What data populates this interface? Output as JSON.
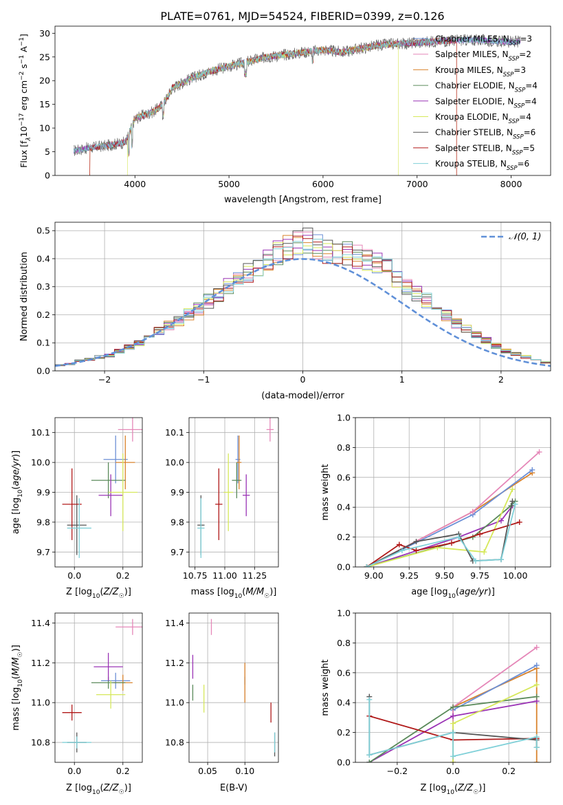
{
  "title": "PLATE=0761, MJD=54524, FIBERID=0399, z=0.126",
  "colors": {
    "Chabrier MILES": "#6b8fd6",
    "Salpeter MILES": "#e587b8",
    "Kroupa MILES": "#d9822b",
    "Chabrier ELODIE": "#5a8a5a",
    "Salpeter ELODIE": "#9a33b5",
    "Kroupa ELODIE": "#d6e85a",
    "Chabrier STELIB": "#555555",
    "Salpeter STELIB": "#b01818",
    "Kroupa STELIB": "#7fd0d8"
  },
  "chart_data": [
    {
      "id": "spectrum",
      "type": "line",
      "xlabel": "wavelength [Angstrom, rest frame]",
      "ylabel": "Flux [f_λ10^-17 erg cm^-2 s^-1 A^-1]",
      "xlim": [
        3150,
        8420
      ],
      "ylim": [
        0,
        31.5
      ],
      "xticks": [
        4000,
        5000,
        6000,
        7000,
        8000
      ],
      "yticks": [
        0,
        5,
        10,
        15,
        20,
        25,
        30
      ],
      "grid": false,
      "legend_position": "top-right",
      "legend": [
        {
          "name": "Chabrier MILES",
          "nssp": "3"
        },
        {
          "name": "Salpeter MILES",
          "nssp": "2"
        },
        {
          "name": "Kroupa MILES",
          "nssp": "3"
        },
        {
          "name": "Chabrier ELODIE",
          "nssp": "4"
        },
        {
          "name": "Salpeter ELODIE",
          "nssp": "4"
        },
        {
          "name": "Kroupa ELODIE",
          "nssp": "4"
        },
        {
          "name": "Chabrier STELIB",
          "nssp": "6"
        },
        {
          "name": "Salpeter STELIB",
          "nssp": "5"
        },
        {
          "name": "Kroupa STELIB",
          "nssp": "6"
        }
      ],
      "data_series": {
        "x": [
          3350,
          3500,
          3700,
          3900,
          4000,
          4200,
          4300,
          4400,
          4600,
          4800,
          5000,
          5200,
          5400,
          5600,
          5800,
          6000,
          6200,
          6400,
          6600,
          6800,
          7000,
          7200,
          7400,
          7600,
          7800,
          8000
        ],
        "y": [
          5.2,
          5.8,
          6.3,
          7.0,
          12.0,
          13.5,
          15.0,
          18.5,
          20.5,
          22.0,
          23.0,
          24.0,
          25.0,
          25.5,
          26.0,
          26.5,
          26.0,
          26.8,
          27.5,
          27.8,
          28.0,
          28.3,
          28.5,
          28.6,
          28.4,
          28.2
        ]
      },
      "model_cutoffs": {
        "Kroupa MILES": [
          3520,
          7420
        ],
        "Kroupa ELODIE": [
          3920,
          6800
        ],
        "Salpeter STELIB": [
          3520,
          7420
        ]
      }
    },
    {
      "id": "residuals",
      "type": "histogram",
      "xlabel": "(data-model)/error",
      "ylabel": "Normed distribution",
      "xlim": [
        -2.5,
        2.5
      ],
      "ylim": [
        0,
        0.53
      ],
      "xticks": [
        -2,
        -1,
        0,
        1,
        2
      ],
      "xtick_labels": [
        "−2",
        "−1",
        "0",
        "1",
        "2"
      ],
      "yticks": [
        0.0,
        0.1,
        0.2,
        0.3,
        0.4,
        0.5
      ],
      "grid": true,
      "legend_position": "top-right",
      "legend": [
        "𝒩(0, 1)"
      ],
      "bin_edges_start": -2.5,
      "bin_width": 0.1,
      "base_values": [
        0.02,
        0.025,
        0.035,
        0.04,
        0.05,
        0.055,
        0.07,
        0.085,
        0.1,
        0.12,
        0.14,
        0.16,
        0.18,
        0.2,
        0.22,
        0.25,
        0.27,
        0.3,
        0.32,
        0.35,
        0.37,
        0.4,
        0.42,
        0.44,
        0.45,
        0.46,
        0.44,
        0.43,
        0.42,
        0.42,
        0.41,
        0.4,
        0.38,
        0.36,
        0.33,
        0.3,
        0.28,
        0.25,
        0.22,
        0.2,
        0.17,
        0.15,
        0.13,
        0.11,
        0.09,
        0.07,
        0.06,
        0.05,
        0.04,
        0.03
      ]
    },
    {
      "id": "age-vs-Z",
      "type": "scatter",
      "xlabel": "Z [log10(Z/Z☉)]",
      "ylabel": "age [log10(age/yr)]",
      "xlim": [
        -0.08,
        0.28
      ],
      "ylim": [
        9.65,
        10.15
      ],
      "xticks": [
        0.0,
        0.2
      ],
      "yticks": [
        9.7,
        9.8,
        9.9,
        10.0,
        10.1
      ],
      "grid": true,
      "points": [
        {
          "model": "Chabrier MILES",
          "x": 0.17,
          "y": 10.01,
          "xerr": 0.05,
          "yerr": 0.08
        },
        {
          "model": "Salpeter MILES",
          "x": 0.24,
          "y": 10.11,
          "xerr": 0.06,
          "yerr": 0.04
        },
        {
          "model": "Kroupa MILES",
          "x": 0.21,
          "y": 10.0,
          "xerr": 0.04,
          "yerr": 0.09
        },
        {
          "model": "Chabrier ELODIE",
          "x": 0.14,
          "y": 9.94,
          "xerr": 0.07,
          "yerr": 0.06
        },
        {
          "model": "Salpeter ELODIE",
          "x": 0.15,
          "y": 9.89,
          "xerr": 0.05,
          "yerr": 0.07
        },
        {
          "model": "Kroupa ELODIE",
          "x": 0.2,
          "y": 9.9,
          "xerr": 0.06,
          "yerr": 0.13
        },
        {
          "model": "Chabrier STELIB",
          "x": 0.01,
          "y": 9.79,
          "xerr": 0.04,
          "yerr": 0.1
        },
        {
          "model": "Salpeter STELIB",
          "x": -0.01,
          "y": 9.86,
          "xerr": 0.04,
          "yerr": 0.12
        },
        {
          "model": "Kroupa STELIB",
          "x": 0.02,
          "y": 9.78,
          "xerr": 0.05,
          "yerr": 0.1
        }
      ]
    },
    {
      "id": "age-vs-mass",
      "type": "scatter",
      "xlabel": "mass [log10(M/M☉)]",
      "ylabel": "",
      "xlim": [
        10.7,
        11.45
      ],
      "ylim": [
        9.65,
        10.15
      ],
      "xticks": [
        10.75,
        11.0,
        11.25
      ],
      "yticks": [
        9.7,
        9.8,
        9.9,
        10.0,
        10.1
      ],
      "grid": true,
      "points": [
        {
          "model": "Chabrier MILES",
          "x": 11.11,
          "y": 10.01,
          "xerr": 0.02,
          "yerr": 0.08
        },
        {
          "model": "Salpeter MILES",
          "x": 11.38,
          "y": 10.11,
          "xerr": 0.03,
          "yerr": 0.04
        },
        {
          "model": "Kroupa MILES",
          "x": 11.12,
          "y": 10.0,
          "xerr": 0.02,
          "yerr": 0.09
        },
        {
          "model": "Chabrier ELODIE",
          "x": 11.1,
          "y": 9.94,
          "xerr": 0.04,
          "yerr": 0.06
        },
        {
          "model": "Salpeter ELODIE",
          "x": 11.18,
          "y": 9.89,
          "xerr": 0.03,
          "yerr": 0.07
        },
        {
          "model": "Kroupa ELODIE",
          "x": 11.03,
          "y": 9.9,
          "xerr": 0.04,
          "yerr": 0.13
        },
        {
          "model": "Chabrier STELIB",
          "x": 10.8,
          "y": 9.79,
          "xerr": 0.03,
          "yerr": 0.1
        },
        {
          "model": "Salpeter STELIB",
          "x": 10.95,
          "y": 9.86,
          "xerr": 0.03,
          "yerr": 0.12
        },
        {
          "model": "Kroupa STELIB",
          "x": 10.8,
          "y": 9.78,
          "xerr": 0.03,
          "yerr": 0.1
        }
      ]
    },
    {
      "id": "cumulative-age",
      "type": "line",
      "xlabel": "age [log10(age/yr)]",
      "ylabel": "mass weight",
      "xlim": [
        8.87,
        10.25
      ],
      "ylim": [
        0,
        1.0
      ],
      "xticks": [
        9.0,
        9.25,
        9.5,
        9.75,
        10.0
      ],
      "xtick_labels": [
        "9.00",
        "9.25",
        "9.50",
        "9.75",
        "10.00"
      ],
      "yticks": [
        0.0,
        0.2,
        0.4,
        0.6,
        0.8,
        1.0
      ],
      "grid": true,
      "series": [
        {
          "model": "Kroupa MILES",
          "x": [
            8.95,
            9.7,
            10.12
          ],
          "y": [
            0.0,
            0.37,
            0.63
          ]
        },
        {
          "model": "Chabrier MILES",
          "x": [
            8.95,
            9.7,
            10.12
          ],
          "y": [
            0.0,
            0.35,
            0.65
          ]
        },
        {
          "model": "Salpeter MILES",
          "x": [
            8.95,
            9.7,
            10.17
          ],
          "y": [
            0.0,
            0.37,
            0.77
          ]
        },
        {
          "model": "Salpeter ELODIE",
          "x": [
            8.95,
            9.6,
            9.9,
            9.98
          ],
          "y": [
            0.0,
            0.2,
            0.31,
            0.41
          ]
        },
        {
          "model": "Chabrier ELODIE",
          "x": [
            8.95,
            9.7,
            9.97,
            10.0
          ],
          "y": [
            0.0,
            0.2,
            0.41,
            0.44
          ]
        },
        {
          "model": "Kroupa ELODIE",
          "x": [
            8.95,
            9.45,
            9.78,
            9.98
          ],
          "y": [
            0.0,
            0.13,
            0.1,
            0.52
          ]
        },
        {
          "model": "Salpeter STELIB",
          "x": [
            8.95,
            9.18,
            9.3,
            9.55,
            9.75,
            10.03
          ],
          "y": [
            0.0,
            0.15,
            0.11,
            0.16,
            0.22,
            0.3
          ]
        },
        {
          "model": "Chabrier STELIB",
          "x": [
            8.95,
            9.3,
            9.6,
            9.7,
            9.9,
            9.98
          ],
          "y": [
            0.0,
            0.17,
            0.22,
            0.04,
            0.05,
            0.44
          ]
        },
        {
          "model": "Kroupa STELIB",
          "x": [
            8.95,
            9.2,
            9.6,
            9.72,
            9.9,
            10.0
          ],
          "y": [
            0.0,
            0.11,
            0.2,
            0.04,
            0.05,
            0.42
          ]
        }
      ]
    },
    {
      "id": "mass-vs-Z",
      "type": "scatter",
      "xlabel": "Z [log10(Z/Z☉)]",
      "ylabel": "mass [log10(M/M☉)]",
      "xlim": [
        -0.08,
        0.28
      ],
      "ylim": [
        10.7,
        11.45
      ],
      "xticks": [
        0.0,
        0.2
      ],
      "yticks": [
        10.8,
        11.0,
        11.2,
        11.4
      ],
      "grid": true,
      "points": [
        {
          "model": "Chabrier MILES",
          "x": 0.17,
          "y": 11.11,
          "xerr": 0.06,
          "yerr": 0.04
        },
        {
          "model": "Salpeter MILES",
          "x": 0.24,
          "y": 11.38,
          "xerr": 0.07,
          "yerr": 0.04
        },
        {
          "model": "Kroupa MILES",
          "x": 0.2,
          "y": 11.1,
          "xerr": 0.04,
          "yerr": 0.04
        },
        {
          "model": "Chabrier ELODIE",
          "x": 0.14,
          "y": 11.1,
          "xerr": 0.07,
          "yerr": 0.03
        },
        {
          "model": "Salpeter ELODIE",
          "x": 0.14,
          "y": 11.18,
          "xerr": 0.06,
          "yerr": 0.07
        },
        {
          "model": "Kroupa ELODIE",
          "x": 0.15,
          "y": 11.04,
          "xerr": 0.06,
          "yerr": 0.07
        },
        {
          "model": "Chabrier STELIB",
          "x": 0.01,
          "y": 10.8,
          "xerr": 0.04,
          "yerr": 0.05
        },
        {
          "model": "Salpeter STELIB",
          "x": -0.01,
          "y": 10.95,
          "xerr": 0.04,
          "yerr": 0.04
        },
        {
          "model": "Kroupa STELIB",
          "x": 0.01,
          "y": 10.8,
          "xerr": 0.06,
          "yerr": 0.03
        }
      ]
    },
    {
      "id": "mass-vs-ebv",
      "type": "scatter",
      "xlabel": "E(B-V)",
      "ylabel": "",
      "xlim": [
        0.025,
        0.145
      ],
      "ylim": [
        10.7,
        11.45
      ],
      "xticks": [
        0.05,
        0.1
      ],
      "xtick_labels": [
        "0.05",
        "0.10"
      ],
      "yticks": [
        10.8,
        11.0,
        11.2,
        11.4
      ],
      "grid": true,
      "points": [
        {
          "model": "Chabrier MILES",
          "x": 0.1,
          "y": 11.11,
          "xerr": 0.0,
          "yerr": 0.02
        },
        {
          "model": "Salpeter MILES",
          "x": 0.055,
          "y": 11.38,
          "xerr": 0.0,
          "yerr": 0.04
        },
        {
          "model": "Kroupa MILES",
          "x": 0.1,
          "y": 11.1,
          "xerr": 0.0,
          "yerr": 0.1
        },
        {
          "model": "Chabrier ELODIE",
          "x": 0.03,
          "y": 11.05,
          "xerr": 0.0,
          "yerr": 0.04
        },
        {
          "model": "Salpeter ELODIE",
          "x": 0.03,
          "y": 11.18,
          "xerr": 0.0,
          "yerr": 0.06
        },
        {
          "model": "Kroupa ELODIE",
          "x": 0.045,
          "y": 11.02,
          "xerr": 0.0,
          "yerr": 0.07
        },
        {
          "model": "Chabrier STELIB",
          "x": 0.14,
          "y": 10.79,
          "xerr": 0.0,
          "yerr": 0.06
        },
        {
          "model": "Salpeter STELIB",
          "x": 0.135,
          "y": 10.95,
          "xerr": 0.0,
          "yerr": 0.05
        },
        {
          "model": "Kroupa STELIB",
          "x": 0.14,
          "y": 10.8,
          "xerr": 0.0,
          "yerr": 0.05
        }
      ]
    },
    {
      "id": "cumulative-Z",
      "type": "line",
      "xlabel": "Z [log10(Z/Z☉)]",
      "ylabel": "mass weight",
      "xlim": [
        -0.35,
        0.35
      ],
      "ylim": [
        0,
        1.0
      ],
      "xticks": [
        -0.2,
        0.0,
        0.2
      ],
      "xtick_labels": [
        "−0.2",
        "0.0",
        "0.2"
      ],
      "yticks": [
        0.0,
        0.2,
        0.4,
        0.6,
        0.8,
        1.0
      ],
      "grid": true,
      "series": [
        {
          "model": "Kroupa MILES",
          "x": [
            0.0,
            0.0,
            0.3,
            0.3
          ],
          "y": [
            0.0,
            0.37,
            0.63,
            0.0
          ]
        },
        {
          "model": "Chabrier MILES",
          "x": [
            0.0,
            0.0,
            0.3
          ],
          "y": [
            0.0,
            0.35,
            0.65
          ]
        },
        {
          "model": "Salpeter MILES",
          "x": [
            0.0,
            0.0,
            0.3
          ],
          "y": [
            0.0,
            0.37,
            0.77
          ]
        },
        {
          "model": "Salpeter ELODIE",
          "x": [
            -0.3,
            0.0,
            0.3
          ],
          "y": [
            0.0,
            0.31,
            0.41
          ]
        },
        {
          "model": "Chabrier ELODIE",
          "x": [
            -0.3,
            0.0,
            0.3
          ],
          "y": [
            0.0,
            0.37,
            0.44
          ]
        },
        {
          "model": "Kroupa ELODIE",
          "x": [
            0.0,
            0.0,
            0.3
          ],
          "y": [
            0.0,
            0.26,
            0.52
          ]
        },
        {
          "model": "Salpeter STELIB",
          "x": [
            -0.3,
            0.0,
            0.3
          ],
          "y": [
            0.31,
            0.15,
            0.16
          ]
        },
        {
          "model": "Chabrier STELIB",
          "x": [
            -0.3,
            -0.3,
            0.0,
            0.3,
            0.3
          ],
          "y": [
            0.44,
            0.05,
            0.2,
            0.15,
            0.1
          ]
        },
        {
          "model": "Kroupa STELIB",
          "x": [
            -0.3,
            -0.3,
            0.0,
            0.0,
            0.3,
            0.3
          ],
          "y": [
            0.42,
            0.05,
            0.2,
            0.04,
            0.17,
            0.1
          ]
        }
      ]
    }
  ]
}
